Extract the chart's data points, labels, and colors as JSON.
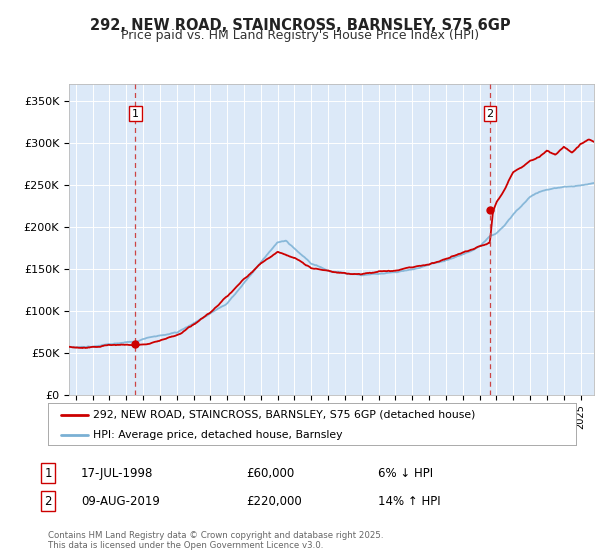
{
  "title": "292, NEW ROAD, STAINCROSS, BARNSLEY, S75 6GP",
  "subtitle": "Price paid vs. HM Land Registry's House Price Index (HPI)",
  "bg_color": "#dce9f8",
  "fig_bg_color": "#ffffff",
  "ylabel_ticks": [
    "£0",
    "£50K",
    "£100K",
    "£150K",
    "£200K",
    "£250K",
    "£300K",
    "£350K"
  ],
  "ytick_vals": [
    0,
    50000,
    100000,
    150000,
    200000,
    250000,
    300000,
    350000
  ],
  "ylim": [
    0,
    370000
  ],
  "xlim_start": 1994.6,
  "xlim_end": 2025.8,
  "sale1_date": 1998.54,
  "sale1_price": 60000,
  "sale1_label": "1",
  "sale2_date": 2019.61,
  "sale2_price": 220000,
  "sale2_label": "2",
  "legend_line1": "292, NEW ROAD, STAINCROSS, BARNSLEY, S75 6GP (detached house)",
  "legend_line2": "HPI: Average price, detached house, Barnsley",
  "footer": "Contains HM Land Registry data © Crown copyright and database right 2025.\nThis data is licensed under the Open Government Licence v3.0.",
  "line_color_red": "#cc0000",
  "line_color_blue": "#7ab0d4",
  "grid_color": "#ffffff"
}
